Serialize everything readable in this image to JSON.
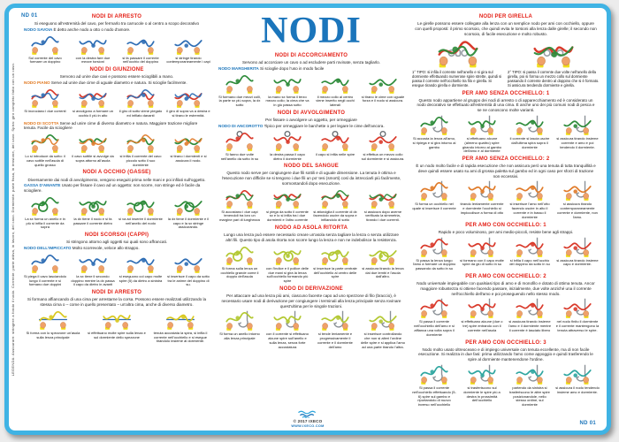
{
  "page": {
    "title": "NODI",
    "code_top_left": "ND 01",
    "code_bottom_right": "ND 01",
    "legend": "LEGENDA: Assicurare: stringere a fondo il nodo. Corrente: parte attiva, in lavoro, del cavo. Dormiente: parte fissa, in tensione, del cavo. Spira: giro completo fatto con un cavo.",
    "copyright": "© 2017 IXECO",
    "website": "WWW.IXECO.COM"
  },
  "colors": {
    "frame_blue": "#3FB3E4",
    "title_blue": "#1B75BB",
    "section_header_red": "#E41E14",
    "knot_name_blue": "#1B75BB",
    "knot_name_orange": "#E0761C",
    "rope_blue": "#2E6DB4",
    "rope_red": "#D93A2B",
    "rope_green": "#2E8B3A",
    "rope_yellow": "#D8C81E",
    "rope_teal": "#2FA6A0",
    "hand_skin": "#EFA169",
    "cuff_yellow": "#F2DF1D"
  },
  "columns": [
    {
      "sections": [
        {
          "header": "NODI DI ARRESTO",
          "desc": "Si eseguono all'estremità del cavo, per fermarlo tra carrucole o al centro a scopo decorativo",
          "groups": [
            {
              "name": "NODO SAVOIA",
              "desc": "È detto anche nodo a otto o nodo d'amore.",
              "art": {
                "kind": "rope",
                "rope": "#2E6DB4"
              },
              "steps": [
                "Sul corrente del cavo formare un doppino",
                "con la destra fare due mezze torsioni",
                "si fa passare il corrente nell'occhio del doppino",
                "si stringe tirando contemporaneamente i capi"
              ]
            }
          ]
        },
        {
          "header": "NODI DI GIUNZIONE",
          "desc": "Servono ad unire due cavi e possono essere scioglibili a mano.",
          "groups": [
            {
              "name": "NODO PIANO",
              "name_color": "#E0761C",
              "desc": "Serve ad unire due cime di uguale diametro e natura. Si scioglie facilmente.",
              "art": {
                "kind": "rope",
                "rope": "#D93A2B",
                "rope2": "#2E6DB4"
              },
              "steps": [
                "Si incrociano i due correnti",
                "si avvolgono a formare un occhio il più in alto",
                "il giro di sotto viene piegato ed infilato davanti",
                "il giro di sopra va a destra e si tirano le estremità."
              ]
            }
          ]
        },
        {
          "header": "",
          "desc": "",
          "groups": [
            {
              "name": "NODO DI SCOTTA",
              "name_color": "#E0761C",
              "desc": "Serve ad unire cime di diverso diametro e natura. Maggiore trazione migliore tenuta. Facile da sciogliere",
              "art": {
                "kind": "rope",
                "rope": "#2E8B3A",
                "rope2": "#E07B2A"
              },
              "steps": [
                "Lo si introduce da sotto: il cavo sottile nell'asola di quello grosso",
                "il cavo sottile si avvolge da sopra attorno all'asola",
                "si infila il corrente del cavo piccolo sotto il suo dormiente",
                "si tirano i dormienti e si assicura il nodo."
              ]
            }
          ]
        },
        {
          "header": "NODI A OCCHIO (GASSE)",
          "desc": "Diversamente dai nodi di avvolgimento, vengono eseguiti prima nelle mani e poi infilati sull'oggetto.",
          "groups": [
            {
              "name": "GASSA D'AMANTE",
              "desc": "Usato per fissare il cavo ad un oggetto: non scorre, non stringe ed è facile da sciogliere.",
              "art": {
                "kind": "loop",
                "rope": "#2E8B3A"
              },
              "steps": [
                "La sx forma un anello e in più si infila il corrente da sopra",
                "la dx tiene il nodo e si fa passare il corrente dietro",
                "si va ad inserire il dormiente nell'anello del nodo",
                "la dx tiene il dormiente e il capo e la sx stringe assicurando."
              ]
            }
          ]
        },
        {
          "header": "NODI SCORSOI (CAPPI)",
          "desc": "Si stringono attorno agli oggetti sui quali sono affrancati.",
          "groups": [
            {
              "name": "NODO DELL'IMPICCATO",
              "desc": "Molto scorrevole, veloce allo strappo.",
              "art": {
                "kind": "rope",
                "rope": "#2E6DB4"
              },
              "steps": [
                "Si piega il cavo lasciandolo lungo il corrente e si formano due doppini",
                "la sx tiene il secondo doppino mentre la dx passa il capo da dietro in avanti",
                "si eseguono col capo molte spire (5) da dietro a sinistra",
                "si inserisce il capo da sotto tra le anime del doppino di su."
              ]
            }
          ]
        },
        {
          "header": "NODI DI ARRESTO",
          "desc": "Si formano affiancando di una cima per arrestarne la corsa. Possono essere realizzati utilizzando la stessa cima o – come in quello presentato – un'altra cima, anche di diverso diametro.",
          "groups": [
            {
              "art": {
                "kind": "line",
                "rope": "#D8C81E"
              },
              "steps": [
                "Si forma con lo spezzone un'asola sulla lenza principale",
                "si effettuano molte spire sulla lenza e sul dormiente dello spezzone",
                "tenuta accostata la spira, si infila il corrente nell'occhiello e si esegue tirandolo insieme al dormiente."
              ]
            }
          ]
        }
      ]
    },
    {
      "sections": [
        {
          "header": "NODI DI ACCORCIAMENTO",
          "desc": "Servono ad accorciare un cavo o ad escludere parti rovinate, senza tagliarlo.",
          "groups": [
            {
              "name": "NODO MARGHERITA",
              "desc": "Si scioglie dopo l'uso in modo facile",
              "art": {
                "kind": "rope",
                "rope": "#2E8B3A"
              },
              "steps": [
                "Si formano due mezzi colli, la parte sx più sopra, la dx sotto",
                "la mano sx forma il terzo mezzo collo; la cima che va in giù passa sotto",
                "il mezzo collo al centro viene inserito negli occhi laterali",
                "si tirano le cime con uguale forza e il nodo si assicura."
              ]
            }
          ]
        },
        {
          "header": "NODI DI AVVOLGIMENTO",
          "desc": "Per fissare o avvolgere un oggetto, per ormeggiare",
          "groups": [
            {
              "name": "NODO DI ANCOROTTO",
              "desc": "Tipico per ormeggiare le barchette o per legare le cime dell'ancora.",
              "art": {
                "kind": "anchor",
                "rope": "#D93A2B"
              },
              "steps": [
                "Si fanno due volte nell'anello da sotto in su",
                "la destra passa il capo dietro il dormiente",
                "il capo si infila nelle spire",
                "si effettua un mezzo collo sul dormiente e si assicura."
              ]
            }
          ]
        },
        {
          "header": "NODO DEL SANGUE",
          "desc": "Questo nodo serve per congiungere due fili sottili e di uguale dimensione. La tenuta è ottima e l'esecuzione non difficile se si tengono i due fili un po' tesi (smorti) così da intrecciarli più facilmente, sormontandoli dopo esecuzione.",
          "groups": [
            {
              "art": {
                "kind": "rope",
                "rope": "#D93A2B",
                "rope2": "#2E8B3A"
              },
              "steps": [
                "Si accostano i due capi tenendoli tra loro un margine pari di lunghezza",
                "si piega da sotto il corrente sx e lo si infila tra i due dormienti e l'altro corrente",
                "si attorciglia il corrente di dx facendolo uscire da sopra e infilandolo di sotto",
                "si assicura dopo averne verificato la simmetria, tirando i due correnti."
              ]
            }
          ]
        },
        {
          "header": "NODO AD ASOLA RITORTA",
          "desc": "Lungo una lenza può essere necessario creare un'asola senza tagliare la lenza o senza utilizzare altri fili. Questo tipo di asola ritorta non scorre lungo la lenza e non ne indebolisce la resistenza.",
          "groups": [
            {
              "art": {
                "kind": "loop",
                "rope": "#B3C832"
              },
              "steps": [
                "Si forma sulla lenza un occhiello grande come il doppio dell'asola",
                "con l'indice e il pollice delle due mani si gira la lenza sull'occhiello formando più spire",
                "si inserisce la parte centrale dell'occhiello al centro delle spire",
                "si assicura tirando la lenza dai due lembi e l'asola dall'altro."
              ]
            }
          ]
        },
        {
          "header": "NODO DI DERIVAZIONE",
          "desc": "Per attaccare ad una lenza più ami, ciascuno facente capo ad uno spezzone di filo (braccio), è necessario usare nodi di derivazione per congiungere i terminali alla lenza principale senza rovinare quest'ultima per le singole trazioni.",
          "groups": [
            {
              "art": {
                "kind": "hook",
                "rope": "#B3C832"
              },
              "steps": [
                "Si forma un anello intorno alla lenza principale",
                "con il corrente si effettuano alcune spire sull'anello e sulla lenza, senza forte accostatura",
                "si tende lentamente e progressivamente il corrente e il dormiente dell'amo",
                "si inserisce controllando che non si alteri l'ordine delle spire e si applica l'amo ad una parte tirando l'altra."
              ]
            }
          ]
        }
      ]
    },
    {
      "sections": [
        {
          "header": "NODI PER GIRELLA",
          "desc": "Le girelle possono essere collegate alla lenza con un semplice nodo per ami con occhiello, oppure con quelli proposti: il primo scorsoio, che quindi evita le torsioni alla lenza dalle girelle; il secondo non scorsoio, di facile esecuzione e molto robusto.",
          "groups": [
            {
              "big": true,
              "art": {
                "kind": "swivel",
                "rope": "#D93A2B",
                "rope2": "#2E8B3A"
              },
              "steps": [
                "1° TIPO: si infila il corrente nell'anello e si gira sul dormiente effettuando numerose spire strette, quindi si passa il corrente nell'occhiello tra filo e girella. Si esegue tirando girella e dormiente.",
                "2° TIPO: si passa il corrente due volte nell'anello della girella, poi si forma un mezzo collo sul dormiente passando il corrente dentro al doppino che si è formato. Si assicura tendendo dormiente e girella."
              ]
            }
          ]
        },
        {
          "header": "PER AMO SENZA OCCHIELLO: 1",
          "desc": "Questo nodo appartiene al gruppo dei nodi di arresto o di apparecchiamento ed è considerato un nodo decorativo se effettuato all'estremità di una cima. È anche uno dei più comuni nodi di pesca e se ne conoscono molte varianti.",
          "groups": [
            {
              "art": {
                "kind": "hook",
                "rope": "#2E8B3A"
              },
              "steps": [
                "Si accosta la lenza all'amo, si ripiega e si gira intorno al gambo",
                "si effettuano alcune (almeno quattro) spire girando intorno al gambo dell'amo e al dormiente",
                "il corrente si lascia uscire dall'ultima spira sopra il dormiente",
                "si assicura tirando insieme corrente e amo e poi tendendo il dormiente."
              ]
            }
          ]
        },
        {
          "header": "PER AMO SENZA OCCHIELLO: 2",
          "desc": "È un nodo molto facile e di rapida esecuzione che non assicura però una tenuta di tutta tranquillità e deve quindi essere usato su ami di grossa paletta sul gambo ed in ogni caso per sforzi di trazione non eccessivi.",
          "groups": [
            {
              "art": {
                "kind": "hook",
                "rope": "#E07B2A"
              },
              "steps": [
                "Si forma un occhiello nel quale si inserisce il corrente",
                "tirando lentamente corrente e dormiente l'occhiello si impiccolisce a forma di otto",
                "si inserisce l'amo nell'otto facendo uscire in alto il corrente e in basso il dormiente",
                "si assicura tirando contemporaneamente corrente e dormiente, non l'amo."
              ]
            }
          ]
        },
        {
          "header": "PER AMO CON OCCHIELLO: 1",
          "desc": "Rapido e poco voluminoso, per ami medio-piccoli, resiste bene agli strappi.",
          "groups": [
            {
              "art": {
                "kind": "hook",
                "rope": "#D93A2B"
              },
              "steps": [
                "Si passa la lenza lungo l'amo a formare un doppino passando da sotto in su",
                "si formano con il capo molte spire da giù di sotto in su",
                "si infila il capo nell'occhio del doppino da sotto in su",
                "si assicura tirando insieme capo e dormiente."
              ]
            }
          ]
        },
        {
          "header": "PER AMO CON OCCHIELLO: 2",
          "desc": "Nodo universale impiegabile con qualsiasi tipo di amo e di monofilo e dotato di ottima tenuta. Ancor maggiore robustezza si ottiene facendo passare, inizialmente, due volte anziché una il corrente nell'occhiello dell'amo e poi proseguendo nello stesso modo.",
          "groups": [
            {
              "art": {
                "kind": "hook",
                "rope": "#D93A2B"
              },
              "steps": [
                "Si passa il corrente nell'occhiello dell'amo e si affianca una volta sopra il dormiente",
                "si effettuano alcune (due o tre) spire entrando con il corrente nell'asola",
                "si assicura tirando insieme l'amo e il dormiente mentre il corrente è lasciato libero",
                "nel nodo finito il dormiente e il corrente mantengono la tenuta attraverso le spire."
              ]
            }
          ]
        },
        {
          "header": "PER AMO CON OCCHIELLO: 3",
          "desc": "Nodo molto usato oltreoceano e di impiego universale con tenuta eccellente, ma di non facile esecuzione. Si realizza in due fasi: prima utilizzando l'amo come appoggio e quindi trasferendo le spire al dormiente mantenendone l'ordine.",
          "groups": [
            {
              "art": {
                "kind": "hook",
                "rope": "#2FA6A0"
              },
              "steps": [
                "Si passa il corrente nell'occhiello effettuando (5-6) spire sul gambo e riportandolo di nuovo inverso nell'occhiello",
                "si trasferiscono sul dormiente le spire più a destra in prossimità dell'occhiello",
                "partendo da sinistra si trasferiscono le altre spire posizionandole, nello stesso ordine, sul dormiente",
                "si assicura il nodo tendendo insieme amo e dormiente."
              ]
            }
          ]
        }
      ]
    }
  ]
}
